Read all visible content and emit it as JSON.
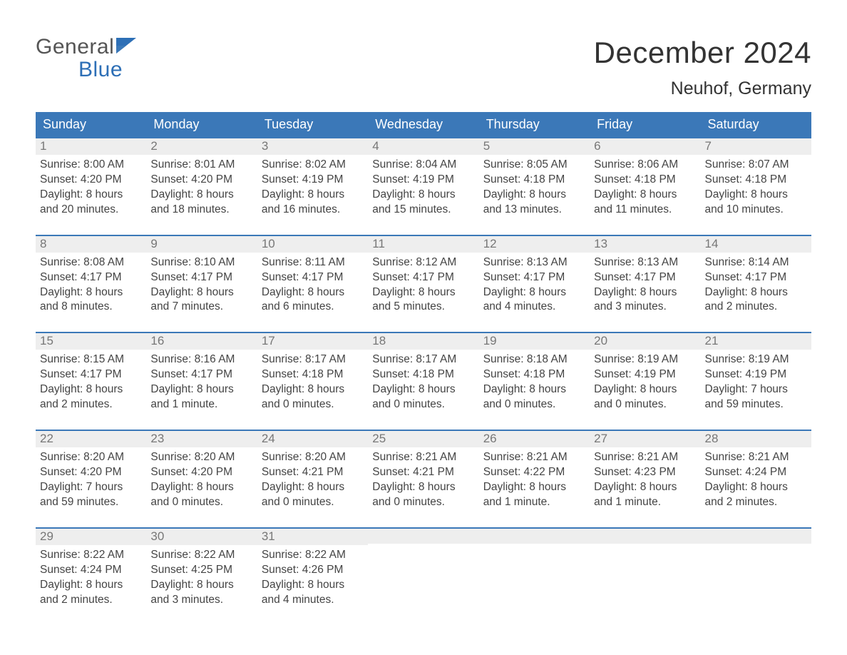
{
  "brand": {
    "top": "General",
    "bottom": "Blue"
  },
  "title": "December 2024",
  "location": "Neuhof, Germany",
  "colors": {
    "header_bg": "#3b78b8",
    "header_text": "#ffffff",
    "day_bar_bg": "#eeeeee",
    "day_bar_border": "#3b78b8",
    "day_number_color": "#777777",
    "body_text": "#444444",
    "title_color": "#333333",
    "brand_gray": "#555555",
    "brand_blue": "#2d6fb6",
    "page_bg": "#ffffff"
  },
  "typography": {
    "title_fontsize": 42,
    "location_fontsize": 25,
    "dow_fontsize": 18,
    "daynum_fontsize": 17,
    "body_fontsize": 15.5,
    "brand_fontsize": 30,
    "font_family": "Arial"
  },
  "dow": [
    "Sunday",
    "Monday",
    "Tuesday",
    "Wednesday",
    "Thursday",
    "Friday",
    "Saturday"
  ],
  "weeks": [
    [
      {
        "n": "1",
        "sunrise": "Sunrise: 8:00 AM",
        "sunset": "Sunset: 4:20 PM",
        "d1": "Daylight: 8 hours",
        "d2": "and 20 minutes."
      },
      {
        "n": "2",
        "sunrise": "Sunrise: 8:01 AM",
        "sunset": "Sunset: 4:20 PM",
        "d1": "Daylight: 8 hours",
        "d2": "and 18 minutes."
      },
      {
        "n": "3",
        "sunrise": "Sunrise: 8:02 AM",
        "sunset": "Sunset: 4:19 PM",
        "d1": "Daylight: 8 hours",
        "d2": "and 16 minutes."
      },
      {
        "n": "4",
        "sunrise": "Sunrise: 8:04 AM",
        "sunset": "Sunset: 4:19 PM",
        "d1": "Daylight: 8 hours",
        "d2": "and 15 minutes."
      },
      {
        "n": "5",
        "sunrise": "Sunrise: 8:05 AM",
        "sunset": "Sunset: 4:18 PM",
        "d1": "Daylight: 8 hours",
        "d2": "and 13 minutes."
      },
      {
        "n": "6",
        "sunrise": "Sunrise: 8:06 AM",
        "sunset": "Sunset: 4:18 PM",
        "d1": "Daylight: 8 hours",
        "d2": "and 11 minutes."
      },
      {
        "n": "7",
        "sunrise": "Sunrise: 8:07 AM",
        "sunset": "Sunset: 4:18 PM",
        "d1": "Daylight: 8 hours",
        "d2": "and 10 minutes."
      }
    ],
    [
      {
        "n": "8",
        "sunrise": "Sunrise: 8:08 AM",
        "sunset": "Sunset: 4:17 PM",
        "d1": "Daylight: 8 hours",
        "d2": "and 8 minutes."
      },
      {
        "n": "9",
        "sunrise": "Sunrise: 8:10 AM",
        "sunset": "Sunset: 4:17 PM",
        "d1": "Daylight: 8 hours",
        "d2": "and 7 minutes."
      },
      {
        "n": "10",
        "sunrise": "Sunrise: 8:11 AM",
        "sunset": "Sunset: 4:17 PM",
        "d1": "Daylight: 8 hours",
        "d2": "and 6 minutes."
      },
      {
        "n": "11",
        "sunrise": "Sunrise: 8:12 AM",
        "sunset": "Sunset: 4:17 PM",
        "d1": "Daylight: 8 hours",
        "d2": "and 5 minutes."
      },
      {
        "n": "12",
        "sunrise": "Sunrise: 8:13 AM",
        "sunset": "Sunset: 4:17 PM",
        "d1": "Daylight: 8 hours",
        "d2": "and 4 minutes."
      },
      {
        "n": "13",
        "sunrise": "Sunrise: 8:13 AM",
        "sunset": "Sunset: 4:17 PM",
        "d1": "Daylight: 8 hours",
        "d2": "and 3 minutes."
      },
      {
        "n": "14",
        "sunrise": "Sunrise: 8:14 AM",
        "sunset": "Sunset: 4:17 PM",
        "d1": "Daylight: 8 hours",
        "d2": "and 2 minutes."
      }
    ],
    [
      {
        "n": "15",
        "sunrise": "Sunrise: 8:15 AM",
        "sunset": "Sunset: 4:17 PM",
        "d1": "Daylight: 8 hours",
        "d2": "and 2 minutes."
      },
      {
        "n": "16",
        "sunrise": "Sunrise: 8:16 AM",
        "sunset": "Sunset: 4:17 PM",
        "d1": "Daylight: 8 hours",
        "d2": "and 1 minute."
      },
      {
        "n": "17",
        "sunrise": "Sunrise: 8:17 AM",
        "sunset": "Sunset: 4:18 PM",
        "d1": "Daylight: 8 hours",
        "d2": "and 0 minutes."
      },
      {
        "n": "18",
        "sunrise": "Sunrise: 8:17 AM",
        "sunset": "Sunset: 4:18 PM",
        "d1": "Daylight: 8 hours",
        "d2": "and 0 minutes."
      },
      {
        "n": "19",
        "sunrise": "Sunrise: 8:18 AM",
        "sunset": "Sunset: 4:18 PM",
        "d1": "Daylight: 8 hours",
        "d2": "and 0 minutes."
      },
      {
        "n": "20",
        "sunrise": "Sunrise: 8:19 AM",
        "sunset": "Sunset: 4:19 PM",
        "d1": "Daylight: 8 hours",
        "d2": "and 0 minutes."
      },
      {
        "n": "21",
        "sunrise": "Sunrise: 8:19 AM",
        "sunset": "Sunset: 4:19 PM",
        "d1": "Daylight: 7 hours",
        "d2": "and 59 minutes."
      }
    ],
    [
      {
        "n": "22",
        "sunrise": "Sunrise: 8:20 AM",
        "sunset": "Sunset: 4:20 PM",
        "d1": "Daylight: 7 hours",
        "d2": "and 59 minutes."
      },
      {
        "n": "23",
        "sunrise": "Sunrise: 8:20 AM",
        "sunset": "Sunset: 4:20 PM",
        "d1": "Daylight: 8 hours",
        "d2": "and 0 minutes."
      },
      {
        "n": "24",
        "sunrise": "Sunrise: 8:20 AM",
        "sunset": "Sunset: 4:21 PM",
        "d1": "Daylight: 8 hours",
        "d2": "and 0 minutes."
      },
      {
        "n": "25",
        "sunrise": "Sunrise: 8:21 AM",
        "sunset": "Sunset: 4:21 PM",
        "d1": "Daylight: 8 hours",
        "d2": "and 0 minutes."
      },
      {
        "n": "26",
        "sunrise": "Sunrise: 8:21 AM",
        "sunset": "Sunset: 4:22 PM",
        "d1": "Daylight: 8 hours",
        "d2": "and 1 minute."
      },
      {
        "n": "27",
        "sunrise": "Sunrise: 8:21 AM",
        "sunset": "Sunset: 4:23 PM",
        "d1": "Daylight: 8 hours",
        "d2": "and 1 minute."
      },
      {
        "n": "28",
        "sunrise": "Sunrise: 8:21 AM",
        "sunset": "Sunset: 4:24 PM",
        "d1": "Daylight: 8 hours",
        "d2": "and 2 minutes."
      }
    ],
    [
      {
        "n": "29",
        "sunrise": "Sunrise: 8:22 AM",
        "sunset": "Sunset: 4:24 PM",
        "d1": "Daylight: 8 hours",
        "d2": "and 2 minutes."
      },
      {
        "n": "30",
        "sunrise": "Sunrise: 8:22 AM",
        "sunset": "Sunset: 4:25 PM",
        "d1": "Daylight: 8 hours",
        "d2": "and 3 minutes."
      },
      {
        "n": "31",
        "sunrise": "Sunrise: 8:22 AM",
        "sunset": "Sunset: 4:26 PM",
        "d1": "Daylight: 8 hours",
        "d2": "and 4 minutes."
      },
      {
        "empty": true
      },
      {
        "empty": true
      },
      {
        "empty": true
      },
      {
        "empty": true
      }
    ]
  ]
}
